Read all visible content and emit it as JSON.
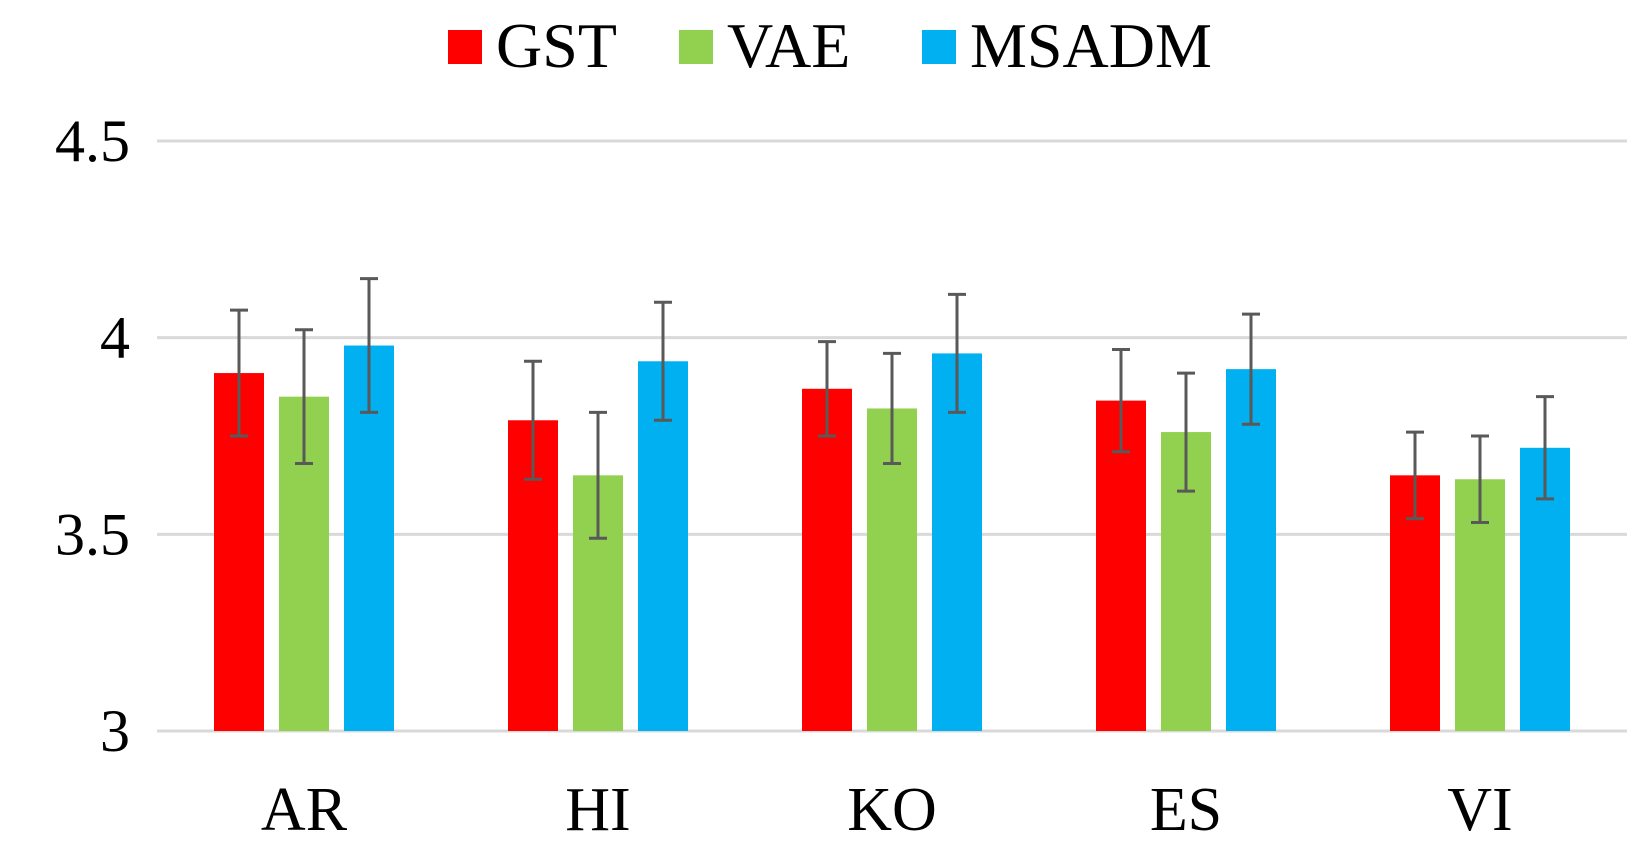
{
  "chart_data": {
    "type": "bar",
    "title": "",
    "xlabel": "",
    "ylabel": "",
    "ylim": [
      3,
      4.5
    ],
    "yticks": [
      "3",
      "3.5",
      "4",
      "4.5"
    ],
    "categories": [
      "AR",
      "HI",
      "KO",
      "ES",
      "VI"
    ],
    "legend_position": "top",
    "grid": true,
    "series": [
      {
        "name": "GST",
        "color": "#ff0000",
        "values": [
          3.91,
          3.79,
          3.87,
          3.84,
          3.65
        ],
        "errors": [
          0.16,
          0.15,
          0.12,
          0.13,
          0.11
        ]
      },
      {
        "name": "VAE",
        "color": "#92d050",
        "values": [
          3.85,
          3.65,
          3.82,
          3.76,
          3.64
        ],
        "errors": [
          0.17,
          0.16,
          0.14,
          0.15,
          0.11
        ]
      },
      {
        "name": "MSADM",
        "color": "#00b0f0",
        "values": [
          3.98,
          3.94,
          3.96,
          3.92,
          3.72
        ],
        "errors": [
          0.17,
          0.15,
          0.15,
          0.14,
          0.13
        ]
      }
    ]
  }
}
